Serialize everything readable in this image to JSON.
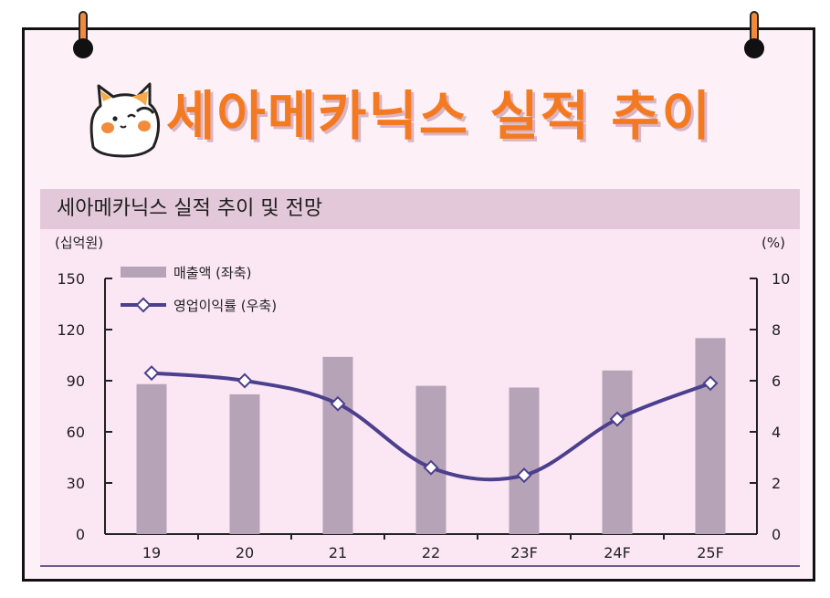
{
  "headline": "세아메카닉스 실적 추이",
  "panel_title": "세아메카닉스 실적 추이 및 전망",
  "colors": {
    "accent_orange": "#f47a22",
    "bar": "#b7a3b8",
    "line": "#4b3f8e",
    "header_band": "#e3c8d9",
    "panel_bg": "#fbe6f4"
  },
  "chart_data": {
    "type": "bar",
    "title": "세아메카닉스 실적 추이 및 전망",
    "categories": [
      "19",
      "20",
      "21",
      "22",
      "23F",
      "24F",
      "25F"
    ],
    "left_axis": {
      "unit": "(십억원)",
      "ylim": [
        0,
        150
      ],
      "ticks": [
        0,
        30,
        60,
        90,
        120,
        150
      ]
    },
    "right_axis": {
      "unit": "(%)",
      "ylim": [
        0,
        10
      ],
      "ticks": [
        0,
        2,
        4,
        6,
        8,
        10
      ]
    },
    "series": [
      {
        "name": "매출액 (좌축)",
        "type": "bar",
        "axis": "left",
        "values": [
          88,
          82,
          104,
          87,
          86,
          96,
          115
        ]
      },
      {
        "name": "영업이익률 (우축)",
        "type": "line",
        "axis": "right",
        "values": [
          6.3,
          6.0,
          5.1,
          2.6,
          2.3,
          4.5,
          5.9
        ]
      }
    ],
    "legend_position": "top-left",
    "grid": false
  }
}
